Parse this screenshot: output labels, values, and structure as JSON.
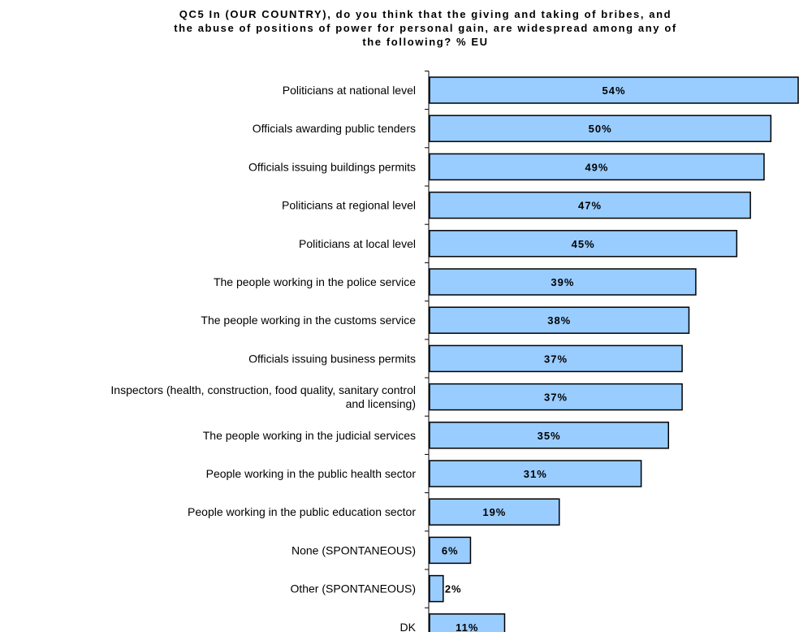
{
  "chart_data": {
    "type": "bar",
    "orientation": "horizontal",
    "title_lines": [
      "QC5 In (OUR COUNTRY), do you think that the giving and taking of bribes, and",
      "the abuse of positions of power for personal gain, are widespread among any of",
      "the following? % EU"
    ],
    "categories": [
      [
        "Politicians at national level"
      ],
      [
        "Officials awarding public tenders"
      ],
      [
        "Officials issuing buildings permits"
      ],
      [
        "Politicians at regional level"
      ],
      [
        "Politicians at local level"
      ],
      [
        "The people working in the police service"
      ],
      [
        "The people working in the customs service"
      ],
      [
        "Officials issuing business permits"
      ],
      [
        "Inspectors (health, construction, food quality, sanitary control",
        "and licensing)"
      ],
      [
        "The people working in the judicial services"
      ],
      [
        "People working in the public health sector"
      ],
      [
        "People working in the public education sector"
      ],
      [
        "None (SPONTANEOUS)"
      ],
      [
        "Other (SPONTANEOUS)"
      ],
      [
        "DK"
      ]
    ],
    "values": [
      54,
      50,
      49,
      47,
      45,
      39,
      38,
      37,
      37,
      35,
      31,
      19,
      6,
      2,
      11
    ],
    "value_labels": [
      "54%",
      "50%",
      "49%",
      "47%",
      "45%",
      "39%",
      "38%",
      "37%",
      "37%",
      "35%",
      "31%",
      "19%",
      "6%",
      "2%",
      "11%"
    ],
    "xlim": [
      0,
      54
    ],
    "unit": "%",
    "grid": false,
    "legend": false,
    "colors": {
      "bar_fill": "#99ccff",
      "bar_stroke": "#000000",
      "text": "#000000"
    }
  }
}
